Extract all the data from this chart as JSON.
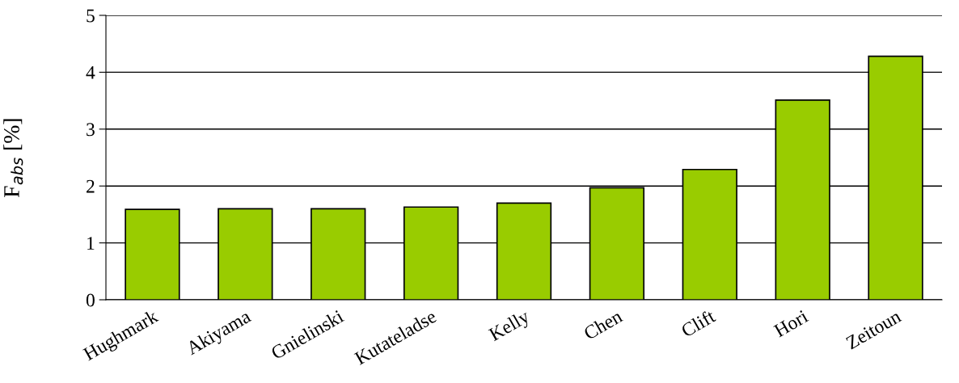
{
  "chart_data": {
    "type": "bar",
    "ylabel": "F$_{abs}$ [%]",
    "categories": [
      "Hughmark",
      "Akiyama",
      "Gnielinski",
      "Kutateladse",
      "Kelly",
      "Chen",
      "Clift",
      "Hori",
      "Zeitoun"
    ],
    "values": [
      1.59,
      1.6,
      1.6,
      1.63,
      1.7,
      1.97,
      2.29,
      3.51,
      4.28
    ],
    "color": "#99cc00",
    "ylim": [
      0,
      5
    ],
    "yticks": [
      0,
      1,
      2,
      3,
      4,
      5
    ],
    "grid": "y",
    "legend": false
  }
}
